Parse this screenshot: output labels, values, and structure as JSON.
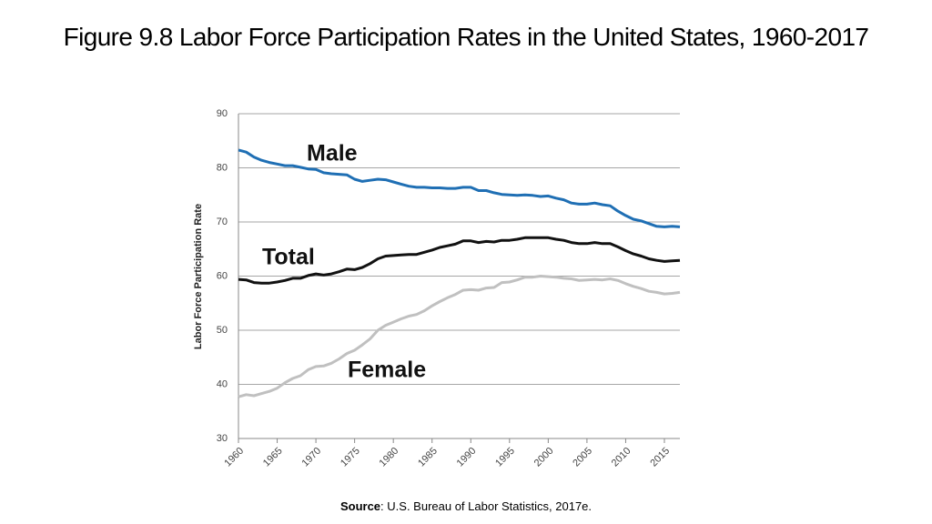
{
  "chart_data": {
    "type": "line",
    "title": "Figure 9.8 Labor Force Participation Rates in the United States, 1960-2017",
    "y_label": "Labor Force Participation Rate",
    "source": {
      "label": "Source",
      "text": ": U.S. Bureau of Labor Statistics, 2017e."
    },
    "x": [
      1960,
      1961,
      1962,
      1963,
      1964,
      1965,
      1966,
      1967,
      1968,
      1969,
      1970,
      1971,
      1972,
      1973,
      1974,
      1975,
      1976,
      1977,
      1978,
      1979,
      1980,
      1981,
      1982,
      1983,
      1984,
      1985,
      1986,
      1987,
      1988,
      1989,
      1990,
      1991,
      1992,
      1993,
      1994,
      1995,
      1996,
      1997,
      1998,
      1999,
      2000,
      2001,
      2002,
      2003,
      2004,
      2005,
      2006,
      2007,
      2008,
      2009,
      2010,
      2011,
      2012,
      2013,
      2014,
      2015,
      2016,
      2017
    ],
    "xlim": [
      1960,
      2017
    ],
    "xticks": [
      1960,
      1965,
      1970,
      1975,
      1980,
      1985,
      1990,
      1995,
      2000,
      2005,
      2010,
      2015
    ],
    "ylim": [
      30,
      90
    ],
    "yticks": [
      30,
      40,
      50,
      60,
      70,
      80,
      90
    ],
    "grid": true,
    "series": [
      {
        "name": "Male",
        "color": "#1f6fb4",
        "values": [
          83.3,
          82.9,
          82.0,
          81.4,
          81.0,
          80.7,
          80.4,
          80.4,
          80.1,
          79.8,
          79.7,
          79.1,
          78.9,
          78.8,
          78.7,
          77.9,
          77.5,
          77.7,
          77.9,
          77.8,
          77.4,
          77.0,
          76.6,
          76.4,
          76.4,
          76.3,
          76.3,
          76.2,
          76.2,
          76.4,
          76.4,
          75.8,
          75.8,
          75.4,
          75.1,
          75.0,
          74.9,
          75.0,
          74.9,
          74.7,
          74.8,
          74.4,
          74.1,
          73.5,
          73.3,
          73.3,
          73.5,
          73.2,
          73.0,
          72.0,
          71.2,
          70.5,
          70.2,
          69.7,
          69.2,
          69.1,
          69.2,
          69.1
        ]
      },
      {
        "name": "Total",
        "color": "#111111",
        "values": [
          59.4,
          59.3,
          58.8,
          58.7,
          58.7,
          58.9,
          59.2,
          59.6,
          59.6,
          60.1,
          60.4,
          60.2,
          60.4,
          60.8,
          61.3,
          61.2,
          61.6,
          62.3,
          63.2,
          63.7,
          63.8,
          63.9,
          64.0,
          64.0,
          64.4,
          64.8,
          65.3,
          65.6,
          65.9,
          66.5,
          66.5,
          66.2,
          66.4,
          66.3,
          66.6,
          66.6,
          66.8,
          67.1,
          67.1,
          67.1,
          67.1,
          66.8,
          66.6,
          66.2,
          66.0,
          66.0,
          66.2,
          66.0,
          66.0,
          65.4,
          64.7,
          64.1,
          63.7,
          63.2,
          62.9,
          62.7,
          62.8,
          62.9
        ]
      },
      {
        "name": "Female",
        "color": "#c0c0c0",
        "values": [
          37.7,
          38.1,
          37.9,
          38.3,
          38.7,
          39.3,
          40.3,
          41.1,
          41.6,
          42.7,
          43.3,
          43.4,
          43.9,
          44.7,
          45.7,
          46.3,
          47.3,
          48.4,
          50.0,
          50.9,
          51.5,
          52.1,
          52.6,
          52.9,
          53.6,
          54.5,
          55.3,
          56.0,
          56.6,
          57.4,
          57.5,
          57.4,
          57.8,
          57.9,
          58.8,
          58.9,
          59.3,
          59.8,
          59.8,
          60.0,
          59.9,
          59.8,
          59.6,
          59.5,
          59.2,
          59.3,
          59.4,
          59.3,
          59.5,
          59.2,
          58.6,
          58.1,
          57.7,
          57.2,
          57.0,
          56.7,
          56.8,
          57.0
        ]
      }
    ]
  }
}
